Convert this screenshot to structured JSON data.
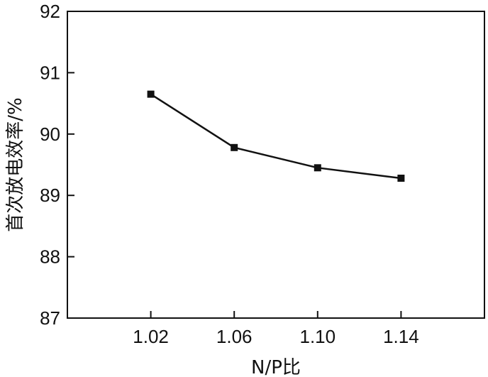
{
  "chart_data": {
    "type": "line",
    "title": "",
    "xlabel": "N/P比",
    "ylabel": "首次放电效率/%",
    "x": [
      1.02,
      1.06,
      1.1,
      1.14
    ],
    "x_tick_labels": [
      "1.02",
      "1.06",
      "1.10",
      "1.14"
    ],
    "xlim": [
      0.98,
      1.18
    ],
    "ylim": [
      87,
      92
    ],
    "y_ticks": [
      87,
      88,
      89,
      90,
      91,
      92
    ],
    "y_tick_labels": [
      "87",
      "88",
      "89",
      "90",
      "91",
      "92"
    ],
    "grid": false,
    "legend": "none",
    "series": [
      {
        "values": [
          90.65,
          89.78,
          89.45,
          89.28
        ],
        "marker": "square",
        "color": "#111111"
      }
    ]
  }
}
